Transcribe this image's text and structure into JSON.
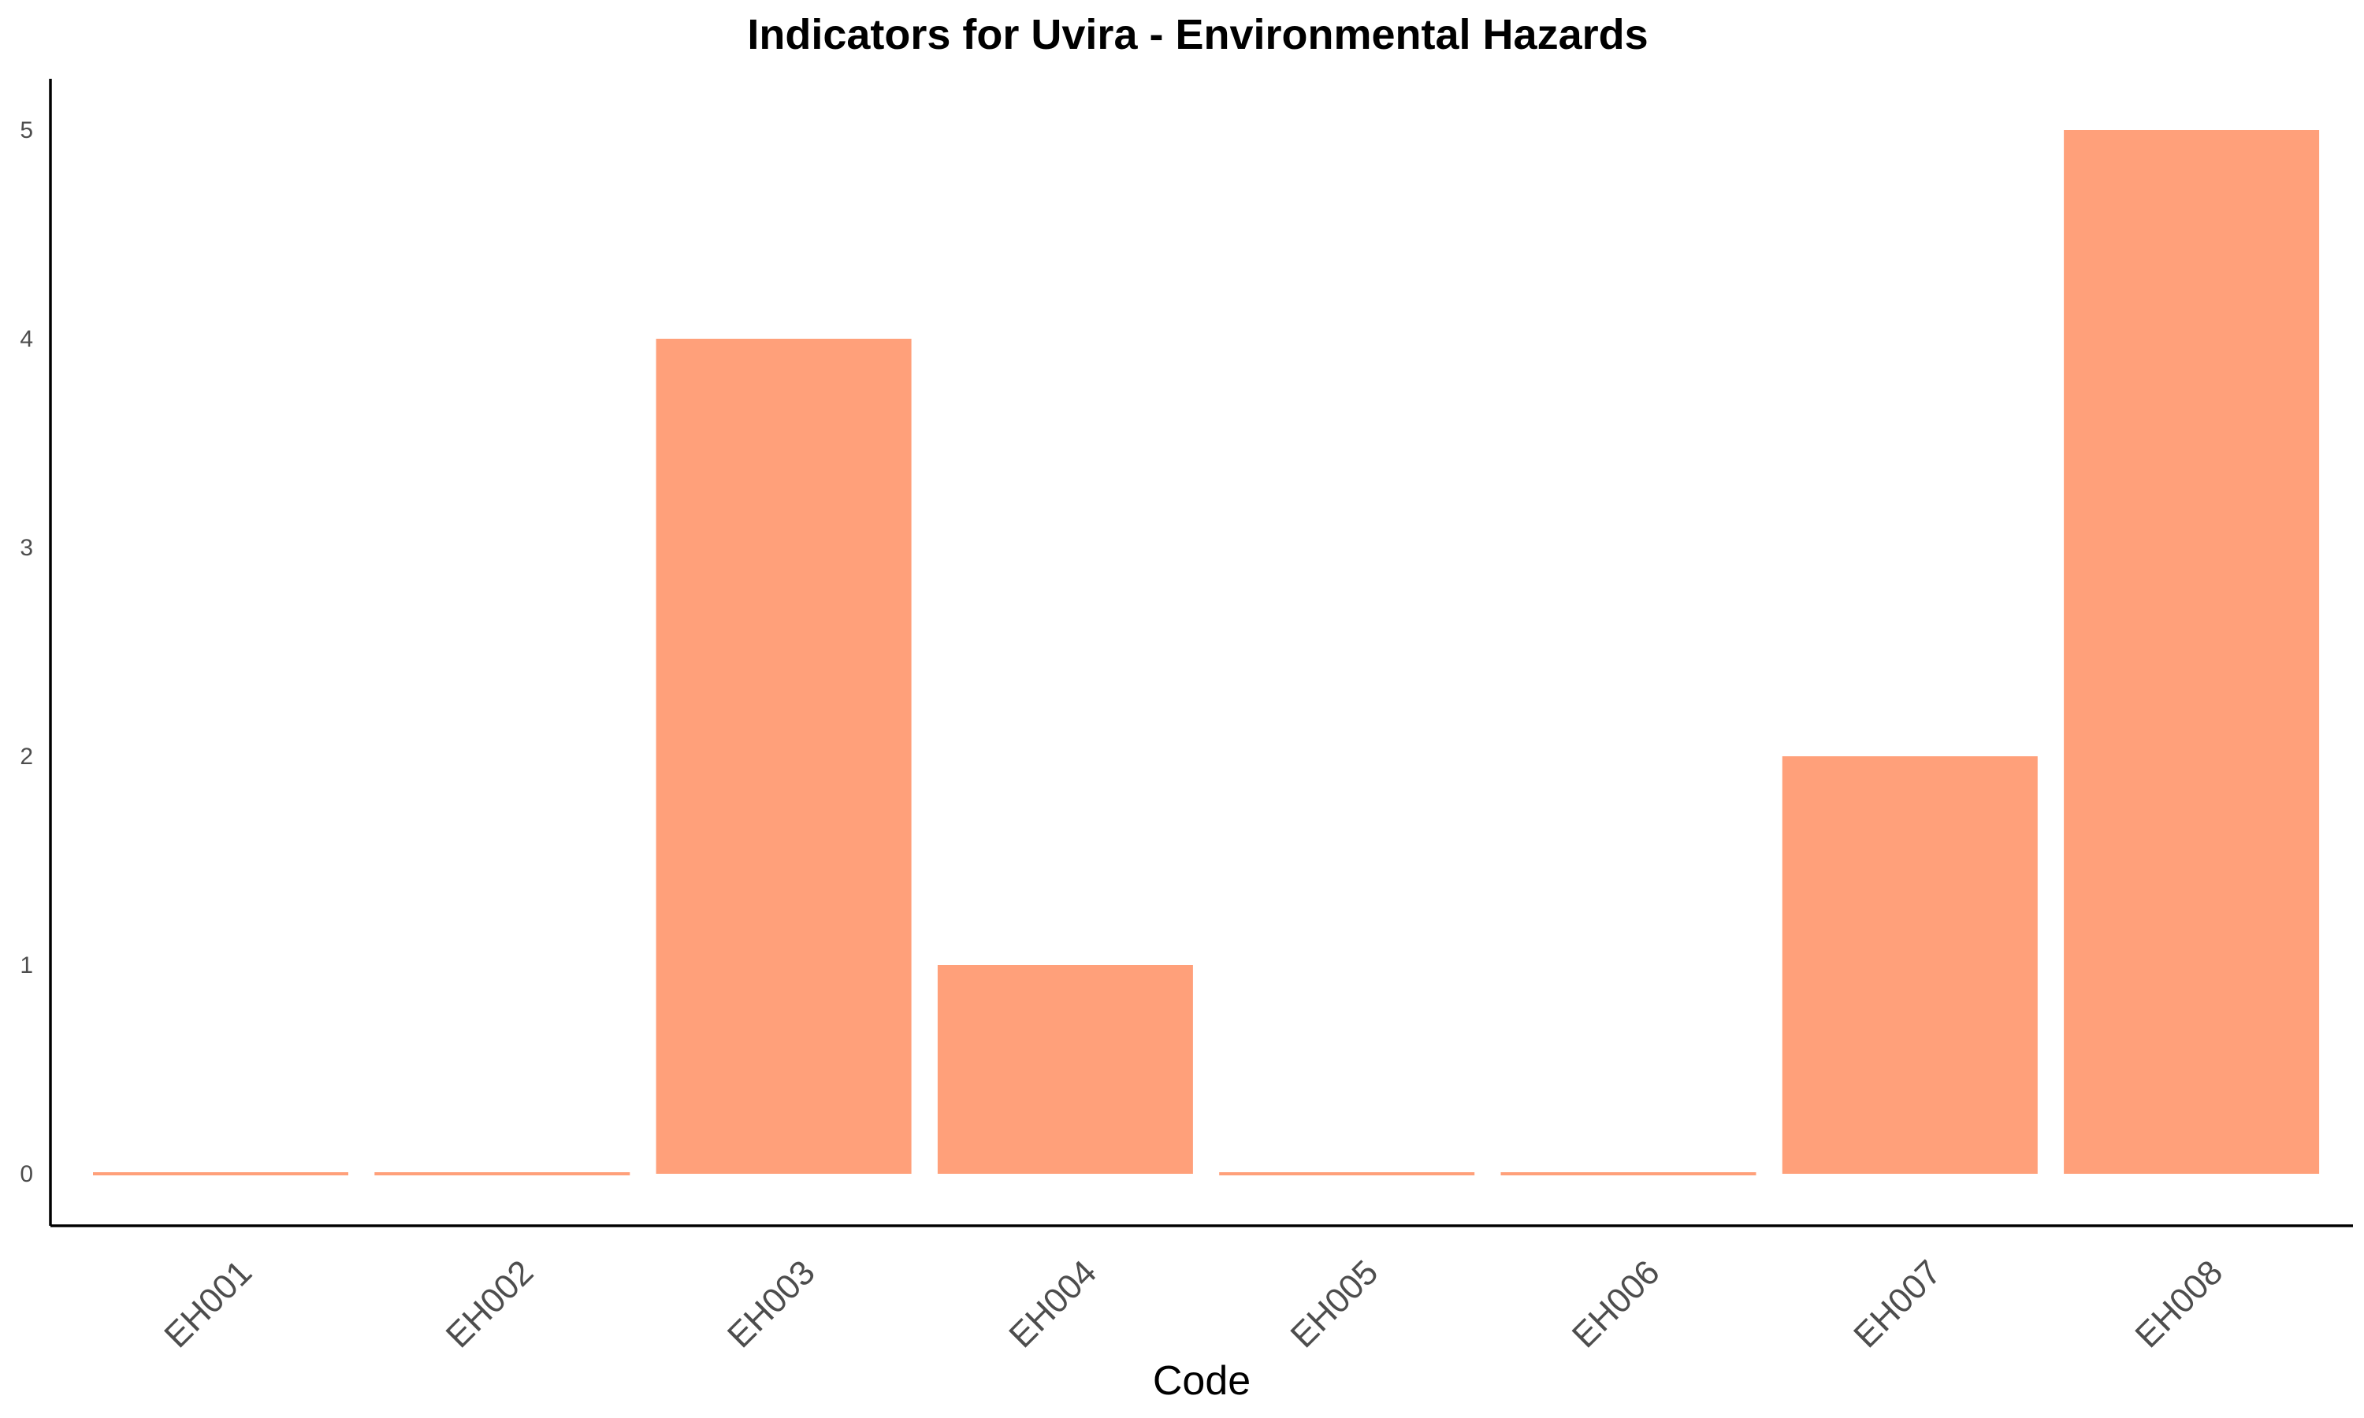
{
  "chart_data": {
    "type": "bar",
    "title": "Indicators for Uvira - Environmental Hazards",
    "xlabel": "Code",
    "ylabel": "",
    "categories": [
      "EH001",
      "EH002",
      "EH003",
      "EH004",
      "EH005",
      "EH006",
      "EH007",
      "EH008"
    ],
    "values": [
      0,
      0,
      4,
      1,
      0,
      0,
      2,
      5
    ],
    "ylim": [
      0,
      5
    ],
    "yticks": [
      0,
      1,
      2,
      3,
      4,
      5
    ],
    "grid": false,
    "legend": "none",
    "bar_color": "#FFA07A"
  }
}
